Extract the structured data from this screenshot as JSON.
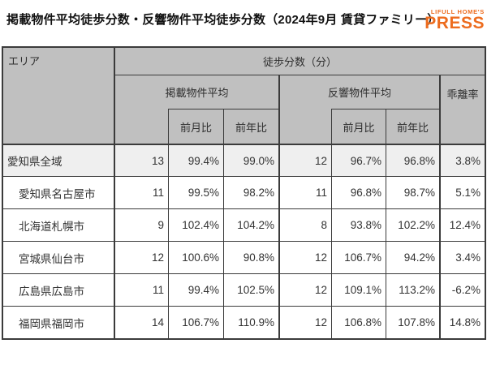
{
  "page_title": "掲載物件平均徒歩分数・反響物件平均徒歩分数（2024年9月 賃貸ファミリー）",
  "logo": {
    "line1": "LIFULL HOME'S",
    "line2": "PRESS"
  },
  "colors": {
    "accent_orange": "#ED6C1E",
    "header_bg": "#C0C0C0",
    "first_row_bg": "#EFEFEF",
    "border": "#3B3B3B",
    "text": "#333333"
  },
  "chart_data": {
    "type": "table",
    "title": "掲載物件平均徒歩分数・反響物件平均徒歩分数（2024年9月 賃貸ファミリー）",
    "headers": {
      "area": "エリア",
      "walk_minutes": "徒歩分数（分）",
      "listed_group": "掲載物件平均",
      "response_group": "反響物件平均",
      "gap": "乖離率",
      "mom": "前月比",
      "yoy": "前年比"
    },
    "columns": [
      "エリア",
      "掲載物件平均 徒歩分数(分)",
      "掲載物件平均 前月比",
      "掲載物件平均 前年比",
      "反響物件平均 徒歩分数(分)",
      "反響物件平均 前月比",
      "反響物件平均 前年比",
      "乖離率"
    ],
    "rows": [
      {
        "area": "愛知県全域",
        "listed": "13",
        "listed_mom": "99.4%",
        "listed_yoy": "99.0%",
        "resp": "12",
        "resp_mom": "96.7%",
        "resp_yoy": "96.8%",
        "gap": "3.8%"
      },
      {
        "area": "愛知県名古屋市",
        "listed": "11",
        "listed_mom": "99.5%",
        "listed_yoy": "98.2%",
        "resp": "11",
        "resp_mom": "96.8%",
        "resp_yoy": "98.7%",
        "gap": "5.1%"
      },
      {
        "area": "北海道札幌市",
        "listed": "9",
        "listed_mom": "102.4%",
        "listed_yoy": "104.2%",
        "resp": "8",
        "resp_mom": "93.8%",
        "resp_yoy": "102.2%",
        "gap": "12.4%"
      },
      {
        "area": "宮城県仙台市",
        "listed": "12",
        "listed_mom": "100.6%",
        "listed_yoy": "90.8%",
        "resp": "12",
        "resp_mom": "106.7%",
        "resp_yoy": "94.2%",
        "gap": "3.4%"
      },
      {
        "area": "広島県広島市",
        "listed": "11",
        "listed_mom": "99.4%",
        "listed_yoy": "102.5%",
        "resp": "12",
        "resp_mom": "109.1%",
        "resp_yoy": "113.2%",
        "gap": "-6.2%"
      },
      {
        "area": "福岡県福岡市",
        "listed": "14",
        "listed_mom": "106.7%",
        "listed_yoy": "110.9%",
        "resp": "12",
        "resp_mom": "106.8%",
        "resp_yoy": "107.8%",
        "gap": "14.8%"
      }
    ]
  }
}
